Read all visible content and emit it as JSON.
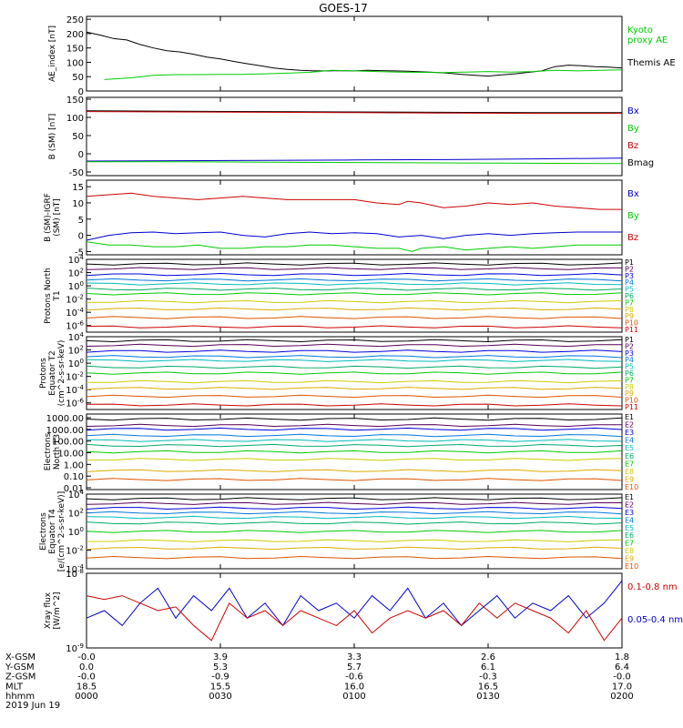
{
  "title": "GOES-17",
  "date_label": "2019 Jun 19",
  "footer_rows": [
    {
      "label": "X-GSM",
      "values": [
        "-0.0",
        "3.9",
        "3.3",
        "2.6",
        "1.8"
      ]
    },
    {
      "label": "Y-GSM",
      "values": [
        "0.0",
        "5.3",
        "5.7",
        "6.1",
        "6.4"
      ]
    },
    {
      "label": "Z-GSM",
      "values": [
        "-0.0",
        "-0.9",
        "-0.6",
        "-0.3",
        "-0.0"
      ]
    },
    {
      "label": "MLT",
      "values": [
        "18.5",
        "15.5",
        "16.0",
        "16.5",
        "17.0"
      ]
    },
    {
      "label": "hhmm",
      "values": [
        "0000",
        "0030",
        "0100",
        "0130",
        "0200"
      ]
    }
  ],
  "colors": {
    "black": "#000000",
    "green": "#00cc00",
    "blue": "#0000cc",
    "red": "#cc0000",
    "p": [
      "#000000",
      "#5a005a",
      "#0000dd",
      "#0077dd",
      "#00bbbb",
      "#00aa66",
      "#00cc00",
      "#cccc00",
      "#ddaa00",
      "#dd5500",
      "#cc0000"
    ]
  },
  "chart_data": [
    {
      "type": "line",
      "ylabel": "AE_index [nT]",
      "yticks": [
        "250",
        "200",
        "150",
        "100",
        "50",
        "0"
      ],
      "ylim": [
        0,
        260
      ],
      "x_range_hhmm": [
        "0000",
        "0200"
      ],
      "legend": [
        {
          "name": "Kyoto proxy AE",
          "lines": [
            "Kyoto",
            "proxy AE"
          ],
          "color": "#00cc00"
        },
        {
          "name": "Themis AE",
          "lines": [
            "Themis AE"
          ],
          "color": "#000000"
        }
      ],
      "series": [
        {
          "name": "Themis AE",
          "color": "#000000",
          "x": [
            0,
            3,
            6,
            9,
            12,
            15,
            18,
            21,
            24,
            27,
            30,
            33,
            36,
            39,
            42,
            45,
            48,
            51,
            54,
            57,
            60,
            63,
            66,
            69,
            72,
            75,
            78,
            81,
            84,
            87,
            90,
            93,
            96,
            99,
            102,
            105,
            108,
            111,
            114,
            117,
            120
          ],
          "y": [
            205,
            195,
            183,
            178,
            162,
            150,
            140,
            136,
            128,
            118,
            112,
            103,
            95,
            88,
            80,
            75,
            72,
            70,
            70,
            71,
            70,
            72,
            71,
            70,
            69,
            67,
            65,
            62,
            58,
            55,
            52,
            56,
            60,
            65,
            70,
            85,
            90,
            88,
            85,
            83,
            80
          ]
        },
        {
          "name": "Kyoto proxy AE",
          "color": "#00cc00",
          "x": [
            4,
            10,
            15,
            20,
            25,
            30,
            35,
            40,
            45,
            50,
            55,
            60,
            65,
            70,
            75,
            80,
            85,
            90,
            95,
            100,
            105,
            110,
            115,
            120
          ],
          "y": [
            40,
            46,
            55,
            57,
            57,
            58,
            58,
            60,
            62,
            65,
            72,
            70,
            68,
            66,
            65,
            64,
            66,
            68,
            66,
            68,
            72,
            70,
            72,
            74
          ]
        }
      ]
    },
    {
      "type": "line",
      "ylabel": "B (SM) [nT]",
      "yticks": [
        "150",
        "100",
        "50",
        "0",
        "-50"
      ],
      "ylim": [
        -60,
        155
      ],
      "legend": [
        {
          "name": "Bx",
          "lines": [
            "Bx"
          ],
          "color": "#0000cc"
        },
        {
          "name": "By",
          "lines": [
            "By"
          ],
          "color": "#00cc00"
        },
        {
          "name": "Bz",
          "lines": [
            "Bz"
          ],
          "color": "#cc0000"
        },
        {
          "name": "Bmag",
          "lines": [
            "Bmag"
          ],
          "color": "#000000"
        }
      ],
      "series": [
        {
          "name": "Bmag",
          "color": "#000000",
          "x": [
            0,
            20,
            40,
            60,
            80,
            100,
            120
          ],
          "y": [
            118,
            117,
            116,
            115,
            114,
            113,
            113
          ]
        },
        {
          "name": "Bz",
          "color": "#cc0000",
          "x": [
            0,
            20,
            40,
            60,
            80,
            100,
            120
          ],
          "y": [
            116,
            115,
            114,
            113,
            112,
            111,
            111
          ]
        },
        {
          "name": "Bx",
          "color": "#0000cc",
          "x": [
            0,
            20,
            40,
            60,
            80,
            100,
            120
          ],
          "y": [
            -20,
            -19,
            -18,
            -17,
            -16,
            -14,
            -12
          ]
        },
        {
          "name": "By",
          "color": "#00cc00",
          "x": [
            0,
            20,
            40,
            60,
            80,
            100,
            120
          ],
          "y": [
            -22,
            -22,
            -23,
            -24,
            -25,
            -26,
            -27
          ]
        }
      ]
    },
    {
      "type": "line",
      "ylabel": "B (SM)-IGRF (SM) [nT]",
      "yticks": [
        "15",
        "10",
        "5",
        "0",
        "-5"
      ],
      "ylim": [
        -6,
        17
      ],
      "legend": [
        {
          "name": "Bx",
          "lines": [
            "Bx"
          ],
          "color": "#0000cc"
        },
        {
          "name": "By",
          "lines": [
            "By"
          ],
          "color": "#00cc00"
        },
        {
          "name": "Bz",
          "lines": [
            "Bz"
          ],
          "color": "#cc0000"
        }
      ],
      "series": [
        {
          "name": "Bz",
          "color": "#cc0000",
          "x": [
            0,
            5,
            10,
            15,
            20,
            25,
            30,
            35,
            40,
            45,
            50,
            55,
            60,
            65,
            70,
            72,
            75,
            80,
            85,
            90,
            95,
            100,
            105,
            110,
            115,
            120
          ],
          "y": [
            12,
            12.5,
            13,
            12,
            11.5,
            11,
            11.5,
            12,
            11.5,
            11,
            11,
            11,
            11,
            10,
            9.5,
            10.5,
            10,
            8.5,
            9,
            10,
            9.5,
            10,
            9,
            8.5,
            8,
            8
          ]
        },
        {
          "name": "Bx",
          "color": "#0000cc",
          "x": [
            0,
            5,
            10,
            15,
            20,
            25,
            30,
            35,
            40,
            45,
            50,
            55,
            60,
            65,
            70,
            75,
            80,
            85,
            90,
            95,
            100,
            105,
            110,
            115,
            120
          ],
          "y": [
            -1.5,
            0,
            0.8,
            1,
            0.5,
            0.8,
            1,
            0,
            -0.5,
            0.5,
            1,
            0.5,
            0.8,
            0.5,
            -0.5,
            0,
            -1,
            0,
            0.5,
            0,
            0.5,
            0.8,
            1,
            1,
            1
          ]
        },
        {
          "name": "By",
          "color": "#00cc00",
          "x": [
            0,
            5,
            10,
            15,
            20,
            25,
            30,
            35,
            40,
            45,
            50,
            55,
            60,
            65,
            70,
            73,
            75,
            80,
            85,
            90,
            95,
            100,
            105,
            110,
            115,
            120
          ],
          "y": [
            -2,
            -3,
            -3,
            -3.5,
            -3.5,
            -3,
            -4,
            -4,
            -3.5,
            -3.5,
            -3,
            -3,
            -3.5,
            -4,
            -4,
            -5,
            -4,
            -3.5,
            -4.5,
            -4,
            -3.5,
            -4,
            -3.5,
            -3,
            -3,
            -3
          ]
        }
      ]
    },
    {
      "type": "line",
      "ylabel": "Protons North T1",
      "log_scale": true,
      "ytick_exps": [
        "4",
        "2",
        "0",
        "-2",
        "-4",
        "-6"
      ],
      "ylim_log10": [
        -7,
        4
      ],
      "legend_labels": [
        "P1",
        "P2",
        "P3",
        "P4",
        "P5",
        "P6",
        "P7",
        "P8",
        "P9",
        "P10",
        "P11"
      ],
      "levels_log10": [
        3.3,
        2.6,
        1.7,
        0.9,
        0.3,
        -0.5,
        -1.2,
        -2.4,
        -3.5,
        -4.8,
        -6.2
      ]
    },
    {
      "type": "line",
      "ylabel": "Protons Equator T2 (cm^2-s-sr-keV)",
      "log_scale": true,
      "ytick_exps": [
        "4",
        "2",
        "0",
        "-2",
        "-4",
        "-6"
      ],
      "ylim_log10": [
        -7,
        4
      ],
      "legend_labels": [
        "P1",
        "P2",
        "P3",
        "P4",
        "P5",
        "P6",
        "P7",
        "P8",
        "P9",
        "P10",
        "P11"
      ],
      "levels_log10": [
        3.4,
        2.7,
        1.8,
        1.0,
        0.4,
        -0.6,
        -1.5,
        -2.8,
        -3.8,
        -5.0,
        -6.3
      ]
    },
    {
      "type": "line",
      "ylabel": "Electrons North T3",
      "log_scale": true,
      "yticks": [
        "1000.00",
        "1000.00",
        "100.00",
        "10.00",
        "1.00",
        "0.10",
        "0.01"
      ],
      "ylim_log10": [
        -2,
        4
      ],
      "legend_labels": [
        "E1",
        "E2",
        "E3",
        "E4",
        "E5",
        "E6",
        "E7",
        "E8",
        "E9",
        "E10"
      ],
      "levels_log10": [
        3.6,
        3.1,
        2.8,
        2.3,
        1.9,
        1.5,
        1.0,
        0.4,
        -0.5,
        -1.2
      ]
    },
    {
      "type": "line",
      "ylabel": "Electrons Equator T4 [e/(cm^2-s-sr-keV)]",
      "log_scale": true,
      "ytick_exps": [
        "4",
        "2",
        "0",
        "-2",
        "-4"
      ],
      "ylim_log10": [
        -4,
        4
      ],
      "legend_labels": [
        "E1",
        "E2",
        "E3",
        "E4",
        "E5",
        "E6",
        "E7",
        "E8",
        "E9",
        "E10"
      ],
      "levels_log10": [
        3.5,
        3.0,
        2.5,
        2.0,
        1.5,
        0.9,
        0.0,
        -1.0,
        -1.8,
        -2.8
      ]
    },
    {
      "type": "line",
      "ylabel": "Xray flux [W/m^2]",
      "log_scale": true,
      "ytick_exps": [
        "-8",
        "-9"
      ],
      "ylim_log10": [
        -9,
        -8
      ],
      "legend": [
        {
          "name": "0.1-0.8 nm",
          "lines": [
            "0.1-0.8 nm"
          ],
          "color": "#cc0000"
        },
        {
          "name": "0.05-0.4 nm",
          "lines": [
            "0.05-0.4 nm"
          ],
          "color": "#0000cc"
        }
      ],
      "series": [
        {
          "name": "0.05-0.4 nm",
          "color": "#0000cc",
          "x": [
            0,
            4,
            8,
            12,
            16,
            20,
            24,
            28,
            32,
            36,
            40,
            44,
            48,
            52,
            56,
            60,
            64,
            68,
            72,
            76,
            80,
            84,
            88,
            92,
            96,
            100,
            104,
            108,
            112,
            116,
            120
          ],
          "y": [
            -8.6,
            -8.5,
            -8.7,
            -8.4,
            -8.2,
            -8.6,
            -8.3,
            -8.5,
            -8.2,
            -8.6,
            -8.4,
            -8.7,
            -8.3,
            -8.5,
            -8.4,
            -8.6,
            -8.3,
            -8.5,
            -8.2,
            -8.6,
            -8.4,
            -8.7,
            -8.5,
            -8.3,
            -8.6,
            -8.4,
            -8.5,
            -8.3,
            -8.6,
            -8.4,
            -8.1
          ]
        },
        {
          "name": "0.1-0.8 nm",
          "color": "#cc0000",
          "x": [
            0,
            4,
            8,
            12,
            16,
            20,
            24,
            28,
            32,
            36,
            40,
            44,
            48,
            52,
            56,
            60,
            64,
            68,
            72,
            76,
            80,
            84,
            88,
            92,
            96,
            100,
            104,
            108,
            112,
            116,
            120
          ],
          "y": [
            -8.3,
            -8.35,
            -8.3,
            -8.4,
            -8.5,
            -8.45,
            -8.7,
            -8.9,
            -8.4,
            -8.6,
            -8.5,
            -8.7,
            -8.5,
            -8.6,
            -8.7,
            -8.5,
            -8.8,
            -8.6,
            -8.5,
            -8.6,
            -8.5,
            -8.7,
            -8.4,
            -8.6,
            -8.4,
            -8.5,
            -8.6,
            -8.8,
            -8.5,
            -8.9,
            -8.6
          ]
        }
      ]
    }
  ]
}
